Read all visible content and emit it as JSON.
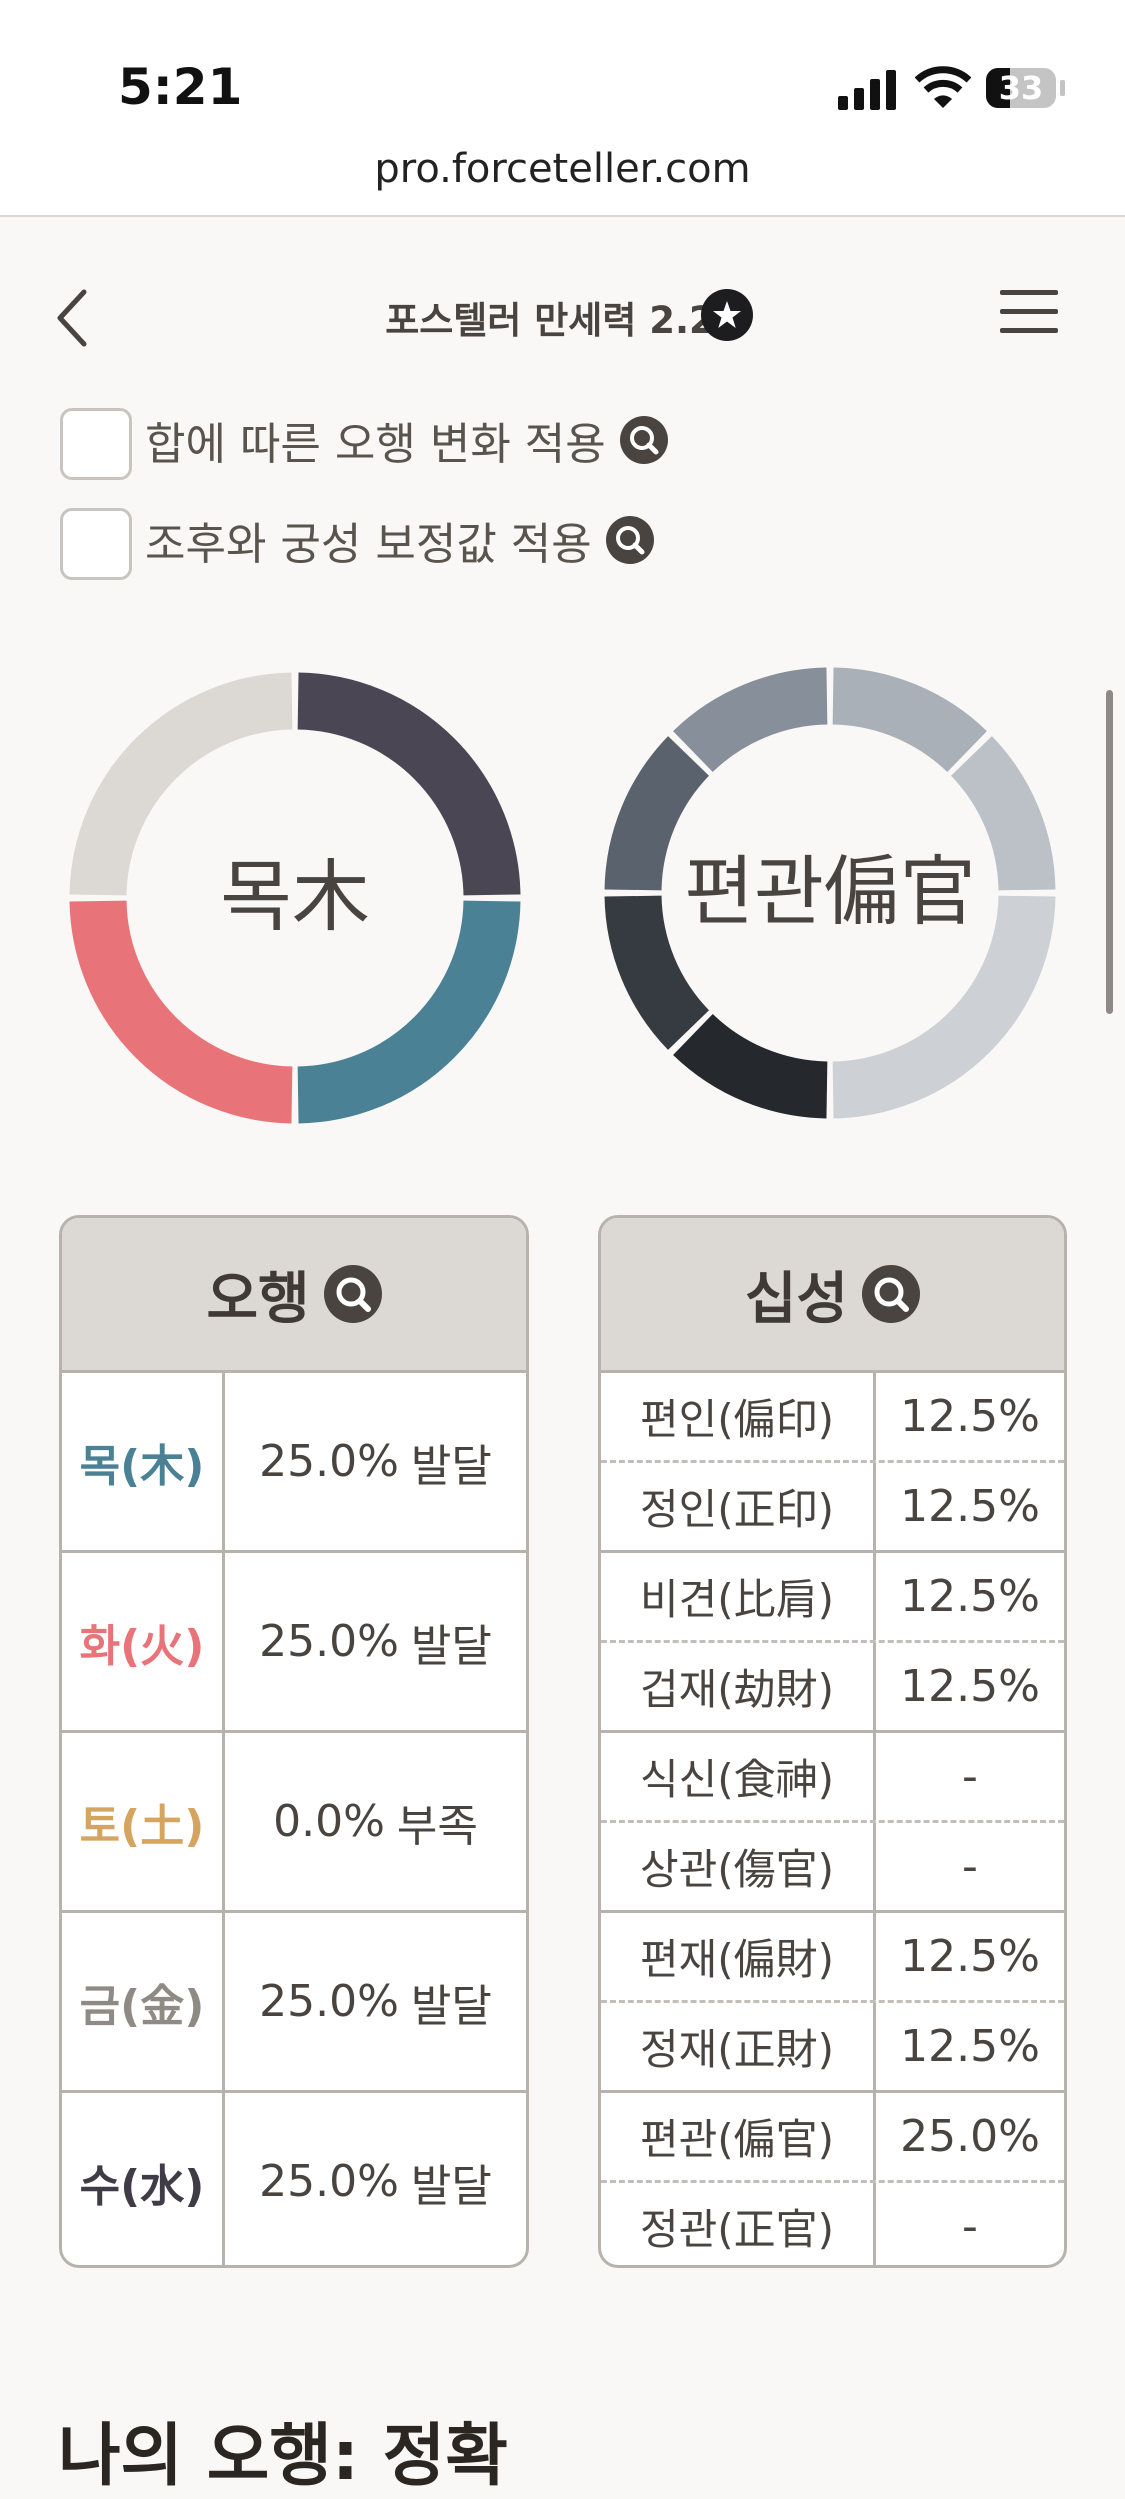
{
  "status_bar": {
    "time": "5:21",
    "battery": "33"
  },
  "url": "pro.forceteller.com",
  "header": {
    "title": "포스텔러 만세력 2.2"
  },
  "options": [
    {
      "label": "합에 따른 오행 변화 적용"
    },
    {
      "label": "조후와 궁성 보정값 적용"
    }
  ],
  "ohaeng": {
    "title": "오행",
    "donut_label": "목木",
    "rows": [
      {
        "name": "목(木)",
        "value": 25,
        "value_label": "25.0%",
        "status": "발달",
        "color": "#4a8195",
        "text_color": "#4a8195"
      },
      {
        "name": "화(火)",
        "value": 25,
        "value_label": "25.0%",
        "status": "발달",
        "color": "#e8747a",
        "text_color": "#e8747a"
      },
      {
        "name": "토(土)",
        "value": 0,
        "value_label": "0.0%",
        "status": "부족",
        "color": "#d4a460",
        "text_color": "#d4a460"
      },
      {
        "name": "금(金)",
        "value": 25,
        "value_label": "25.0%",
        "status": "발달",
        "color": "#dcd9d5",
        "text_color": "#8f8a84"
      },
      {
        "name": "수(水)",
        "value": 25,
        "value_label": "25.0%",
        "status": "발달",
        "color": "#4a4654",
        "text_color": "#3f3b47"
      }
    ]
  },
  "sipsung": {
    "title": "십성",
    "donut_label": "편관偏官",
    "rows": [
      {
        "name": "편인(偏印)",
        "value": 12.5,
        "value_label": "12.5%",
        "color": "#25282d"
      },
      {
        "name": "정인(正印)",
        "value": 12.5,
        "value_label": "12.5%",
        "color": "#363a41"
      },
      {
        "name": "비견(比肩)",
        "value": 12.5,
        "value_label": "12.5%",
        "color": "#5a636d"
      },
      {
        "name": "겁재(劫財)",
        "value": 12.5,
        "value_label": "12.5%",
        "color": "#87909a"
      },
      {
        "name": "식신(食神)",
        "value": 0,
        "value_label": "-"
      },
      {
        "name": "상관(傷官)",
        "value": 0,
        "value_label": "-"
      },
      {
        "name": "편재(偏財)",
        "value": 12.5,
        "value_label": "12.5%",
        "color": "#a9b0b7"
      },
      {
        "name": "정재(正財)",
        "value": 12.5,
        "value_label": "12.5%",
        "color": "#bcc1c7"
      },
      {
        "name": "편관(偏官)",
        "value": 25,
        "value_label": "25.0%",
        "color": "#cdd1d5"
      },
      {
        "name": "정관(正官)",
        "value": 0,
        "value_label": "-"
      }
    ]
  },
  "section_heading": "나의 오행: 정확"
}
